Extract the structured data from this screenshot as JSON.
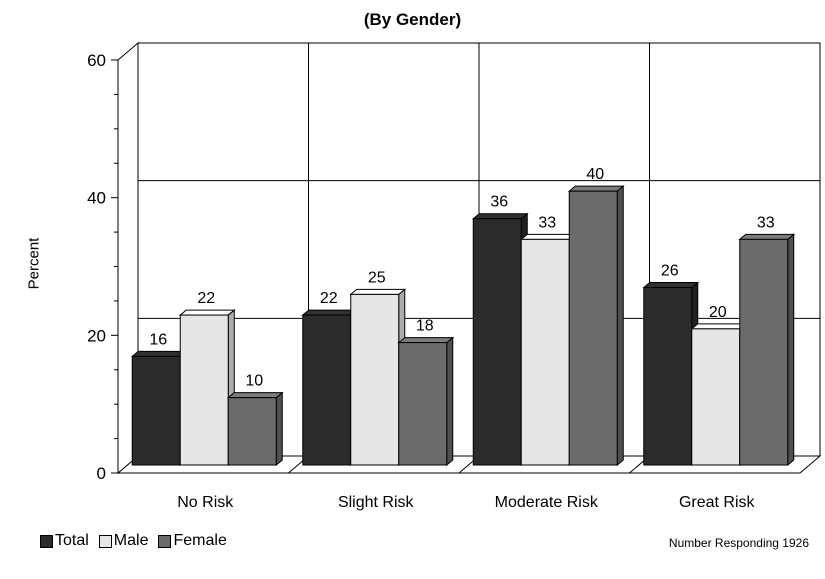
{
  "chart_data": {
    "type": "bar",
    "title": "",
    "subtitle": "(By Gender)",
    "xlabel": "",
    "ylabel": "Percent",
    "ylim": [
      0,
      60
    ],
    "yticks": [
      "0",
      "20",
      "40",
      "60"
    ],
    "categories": [
      "No Risk",
      "Slight Risk",
      "Moderate Risk",
      "Great Risk"
    ],
    "series": [
      {
        "name": "Total",
        "color": "#2b2b2b",
        "values": [
          16,
          22,
          36,
          26
        ]
      },
      {
        "name": "Male",
        "color": "#e6e6e6",
        "values": [
          22,
          25,
          33,
          20
        ]
      },
      {
        "name": "Female",
        "color": "#6b6b6b",
        "values": [
          10,
          18,
          40,
          33
        ]
      }
    ],
    "grid": true,
    "legend_position": "bottom-left",
    "footnote": "Number Responding  1926"
  }
}
